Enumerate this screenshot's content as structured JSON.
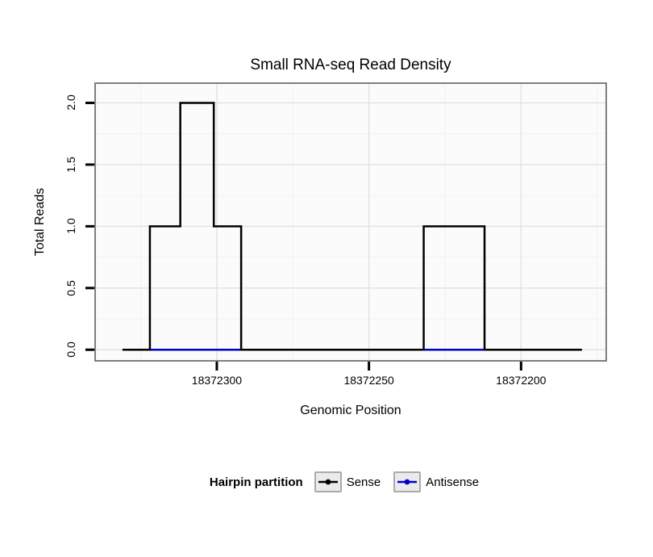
{
  "chart_data": {
    "type": "line",
    "title": "Small RNA-seq Read Density",
    "xlabel": "Genomic Position",
    "ylabel": "Total Reads",
    "x_axis_reversed": true,
    "xlim": [
      18372340,
      18372172
    ],
    "ylim": [
      -0.09,
      2.16
    ],
    "x_ticks": [
      {
        "value": 18372300,
        "label": "18372300"
      },
      {
        "value": 18372250,
        "label": "18372250"
      },
      {
        "value": 18372200,
        "label": "18372200"
      }
    ],
    "y_ticks": [
      {
        "value": 0.0,
        "label": "0.0"
      },
      {
        "value": 0.5,
        "label": "0.5"
      },
      {
        "value": 1.0,
        "label": "1.0"
      },
      {
        "value": 1.5,
        "label": "1.5"
      },
      {
        "value": 2.0,
        "label": "2.0"
      }
    ],
    "x_minor": [
      18372325,
      18372275,
      18372225,
      18372175
    ],
    "y_minor": [
      0.25,
      0.75,
      1.25,
      1.75
    ],
    "series": [
      {
        "name": "Sense",
        "color": "#000000",
        "steps": [
          {
            "from": 18372331,
            "to": 18372322,
            "reads": 0
          },
          {
            "from": 18372322,
            "to": 18372312,
            "reads": 1
          },
          {
            "from": 18372312,
            "to": 18372301,
            "reads": 2
          },
          {
            "from": 18372301,
            "to": 18372292,
            "reads": 1
          },
          {
            "from": 18372292,
            "to": 18372232,
            "reads": 0
          },
          {
            "from": 18372232,
            "to": 18372212,
            "reads": 1
          },
          {
            "from": 18372212,
            "to": 18372180,
            "reads": 0
          }
        ]
      },
      {
        "name": "Antisense",
        "color": "#0000CC",
        "steps": [
          {
            "from": 18372331,
            "to": 18372180,
            "reads": 0
          }
        ]
      }
    ],
    "legend": {
      "title": "Hairpin partition",
      "position": "bottom",
      "entries": [
        "Sense",
        "Antisense"
      ]
    }
  },
  "colors": {
    "panel_bg": "#FBFBFB",
    "grid_major": "#E2E2E2",
    "grid_minor": "#F2F2F2",
    "panel_border": "#7F7F7F",
    "tick": "#000000"
  }
}
